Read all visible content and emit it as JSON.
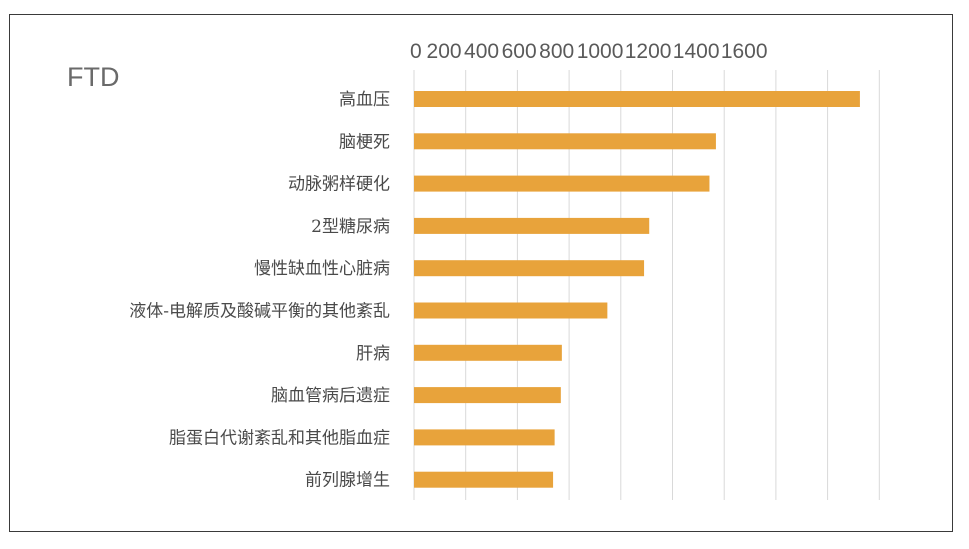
{
  "chart_data": {
    "type": "bar",
    "orientation": "horizontal",
    "title": "FTD",
    "xlabel": "",
    "ylabel": "",
    "xlim": [
      0,
      1800
    ],
    "x_ticks": [
      0,
      200,
      400,
      600,
      800,
      1000,
      1200,
      1400,
      1600
    ],
    "x_tick_labels": [
      "0",
      "200",
      "400",
      "600",
      "800",
      "1000",
      "1200",
      "1400",
      "1600"
    ],
    "grid": true,
    "legend": "none",
    "bar_color": "#E8A33B",
    "categories": [
      "高血压",
      "脑梗死",
      "动脉粥样硬化",
      "2型糖尿病",
      "慢性缺血性心脏病",
      "液体-电解质及酸碱平衡的其他紊乱",
      "肝病",
      "脑血管病后遗症",
      "脂蛋白代谢紊乱和其他脂血症",
      "前列腺增生"
    ],
    "values": [
      1725,
      1168,
      1143,
      910,
      890,
      748,
      572,
      568,
      544,
      538
    ]
  }
}
